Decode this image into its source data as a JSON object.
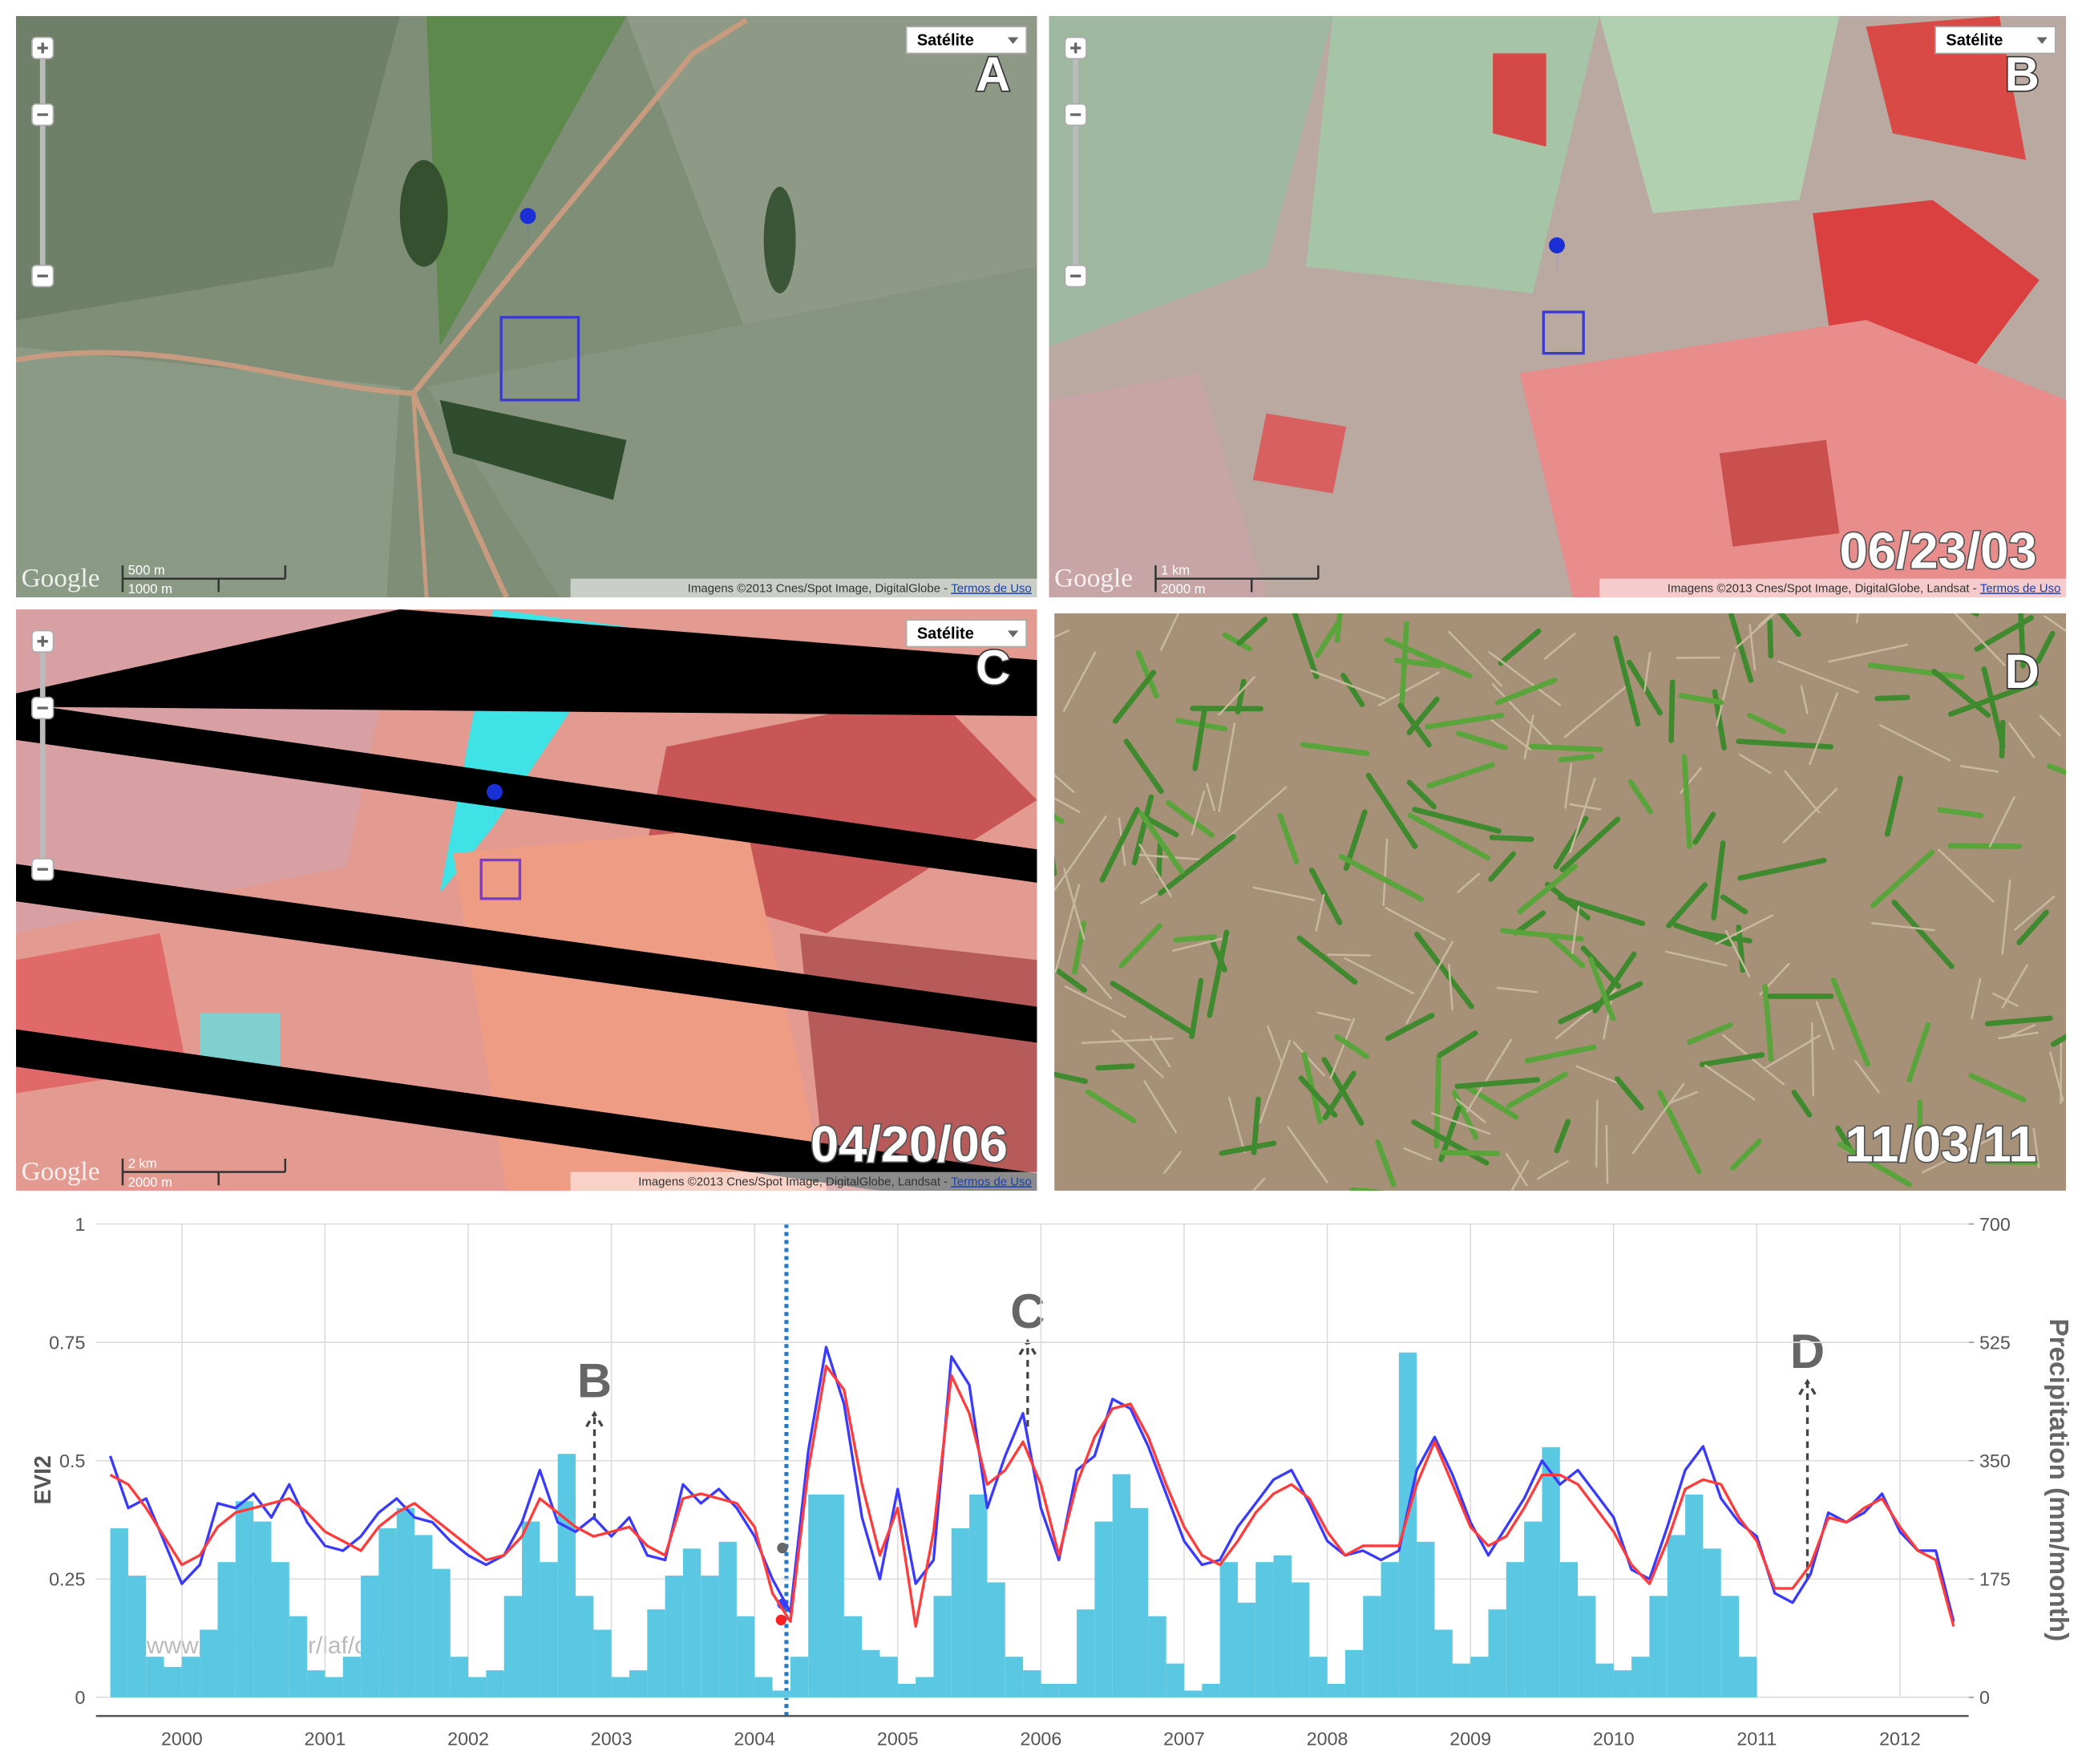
{
  "panels": [
    {
      "map_type": "Satélite",
      "letter": "A",
      "logo": "Google",
      "scale_top": "500 m",
      "scale_bottom": "1000 m",
      "attribution": "Imagens ©2013 Cnes/Spot Image, DigitalGlobe - ",
      "terms": "Termos de Uso"
    },
    {
      "map_type": "Satélite",
      "letter": "B",
      "date": "06/23/03",
      "logo": "Google",
      "scale_top": "1 km",
      "scale_bottom": "2000 m",
      "attribution": "Imagens ©2013 Cnes/Spot Image, DigitalGlobe, Landsat - ",
      "terms": "Termos de Uso"
    },
    {
      "map_type": "Satélite",
      "letter": "C",
      "date": "04/20/06",
      "logo": "Google",
      "scale_top": "2 km",
      "scale_bottom": "2000 m",
      "attribution": "Imagens ©2013 Cnes/Spot Image, DigitalGlobe, Landsat - ",
      "terms": "Termos de Uso"
    },
    {
      "letter": "D",
      "date": "11/03/11"
    }
  ],
  "chart_data": {
    "type": "line",
    "ylabel": "EVI2",
    "y2label": "Precipitation (mm/month)",
    "annotations": [
      {
        "text": "B"
      },
      {
        "text": "C"
      },
      {
        "text": "D"
      }
    ],
    "watermark": "www.dsr.inpe.br/laf/class",
    "grid": true,
    "xlim": [
      1999.9,
      2012.98
    ],
    "xticks": [
      {
        "value": 2000.5,
        "label": "2000"
      },
      {
        "value": 2001.5,
        "label": "2001"
      },
      {
        "value": 2002.5,
        "label": "2002"
      },
      {
        "value": 2003.5,
        "label": "2003"
      },
      {
        "value": 2004.5,
        "label": "2004"
      },
      {
        "value": 2005.5,
        "label": "2005"
      },
      {
        "value": 2006.5,
        "label": "2006"
      },
      {
        "value": 2007.5,
        "label": "2007"
      },
      {
        "value": 2008.5,
        "label": "2008"
      },
      {
        "value": 2009.5,
        "label": "2009"
      },
      {
        "value": 2010.5,
        "label": "2010"
      },
      {
        "value": 2011.5,
        "label": "2011"
      },
      {
        "value": 2012.5,
        "label": "2012"
      }
    ],
    "ylim": [
      0,
      1
    ],
    "yticks": [
      0,
      0.25,
      0.5,
      0.75,
      1
    ],
    "y2lim": [
      0,
      700
    ],
    "y2ticks": [
      0,
      175,
      350,
      525,
      700
    ],
    "x": [
      2000,
      2000.125,
      2000.25,
      2000.375,
      2000.5,
      2000.625,
      2000.75,
      2000.875,
      2001,
      2001.125,
      2001.25,
      2001.375,
      2001.5,
      2001.625,
      2001.75,
      2001.875,
      2002,
      2002.125,
      2002.25,
      2002.375,
      2002.5,
      2002.625,
      2002.75,
      2002.875,
      2003,
      2003.125,
      2003.25,
      2003.375,
      2003.5,
      2003.625,
      2003.75,
      2003.875,
      2004,
      2004.125,
      2004.25,
      2004.375,
      2004.5,
      2004.625,
      2004.75,
      2004.875,
      2005,
      2005.125,
      2005.25,
      2005.375,
      2005.5,
      2005.625,
      2005.75,
      2005.875,
      2006,
      2006.125,
      2006.25,
      2006.375,
      2006.5,
      2006.625,
      2006.75,
      2006.875,
      2007,
      2007.125,
      2007.25,
      2007.375,
      2007.5,
      2007.625,
      2007.75,
      2007.875,
      2008,
      2008.125,
      2008.25,
      2008.375,
      2008.5,
      2008.625,
      2008.75,
      2008.875,
      2009,
      2009.125,
      2009.25,
      2009.375,
      2009.5,
      2009.625,
      2009.75,
      2009.875,
      2010,
      2010.125,
      2010.25,
      2010.375,
      2010.5,
      2010.625,
      2010.75,
      2010.875,
      2011,
      2011.125,
      2011.25,
      2011.375,
      2011.5,
      2011.625,
      2011.75,
      2011.875,
      2012,
      2012.125,
      2012.25,
      2012.375,
      2012.5,
      2012.625,
      2012.75,
      2012.875
    ],
    "series": [
      {
        "type": "bar",
        "axis": "y2",
        "color": "#5bc8e3",
        "values": [
          250,
          180,
          60,
          45,
          60,
          100,
          200,
          290,
          260,
          200,
          120,
          40,
          30,
          60,
          180,
          250,
          280,
          240,
          190,
          60,
          30,
          40,
          150,
          260,
          200,
          360,
          150,
          100,
          30,
          40,
          130,
          180,
          220,
          180,
          230,
          120,
          30,
          10,
          60,
          300,
          300,
          120,
          70,
          60,
          20,
          30,
          150,
          250,
          300,
          170,
          60,
          40,
          20,
          20,
          130,
          260,
          330,
          280,
          120,
          50,
          10,
          20,
          200,
          140,
          200,
          210,
          170,
          60,
          20,
          70,
          150,
          200,
          510,
          230,
          100,
          50,
          60,
          130,
          200,
          260,
          370,
          200,
          150,
          50,
          40,
          60,
          150,
          240,
          300,
          220,
          150,
          60,
          null,
          null,
          null,
          null,
          null,
          null,
          null,
          null,
          null,
          null,
          null,
          null
        ]
      },
      {
        "type": "line",
        "color": "#3a3aff",
        "values": [
          0.51,
          0.4,
          0.42,
          0.33,
          0.24,
          0.28,
          0.41,
          0.4,
          0.43,
          0.38,
          0.45,
          0.37,
          0.32,
          0.31,
          0.34,
          0.39,
          0.42,
          0.38,
          0.37,
          0.33,
          0.3,
          0.28,
          0.3,
          0.37,
          0.48,
          0.37,
          0.35,
          0.38,
          0.34,
          0.38,
          0.3,
          0.29,
          0.45,
          0.41,
          0.44,
          0.4,
          0.34,
          0.25,
          0.18,
          0.52,
          0.74,
          0.62,
          0.38,
          0.25,
          0.44,
          0.24,
          0.29,
          0.72,
          0.66,
          0.4,
          0.51,
          0.6,
          0.4,
          0.29,
          0.48,
          0.51,
          0.63,
          0.61,
          0.53,
          0.43,
          0.33,
          0.28,
          0.29,
          0.36,
          0.41,
          0.46,
          0.48,
          0.41,
          0.33,
          0.3,
          0.31,
          0.29,
          0.31,
          0.48,
          0.55,
          0.47,
          0.37,
          0.3,
          0.36,
          0.42,
          0.5,
          0.45,
          0.48,
          0.43,
          0.38,
          0.27,
          0.25,
          0.36,
          0.48,
          0.53,
          0.42,
          0.37,
          0.34,
          0.22,
          0.2,
          0.26,
          0.39,
          0.37,
          0.39,
          0.43,
          0.35,
          0.31,
          0.31,
          0.16
        ]
      },
      {
        "type": "line",
        "color": "#ff3b3b",
        "values": [
          0.47,
          0.45,
          0.4,
          0.34,
          0.28,
          0.3,
          0.36,
          0.39,
          0.4,
          0.41,
          0.42,
          0.39,
          0.35,
          0.33,
          0.31,
          0.36,
          0.39,
          0.41,
          0.38,
          0.35,
          0.32,
          0.29,
          0.3,
          0.34,
          0.42,
          0.39,
          0.36,
          0.34,
          0.35,
          0.36,
          0.32,
          0.3,
          0.42,
          0.43,
          0.42,
          0.41,
          0.36,
          0.22,
          0.16,
          0.48,
          0.7,
          0.65,
          0.45,
          0.3,
          0.4,
          0.15,
          0.35,
          0.68,
          0.6,
          0.45,
          0.48,
          0.54,
          0.45,
          0.3,
          0.45,
          0.55,
          0.61,
          0.62,
          0.55,
          0.45,
          0.36,
          0.3,
          0.28,
          0.33,
          0.39,
          0.43,
          0.45,
          0.42,
          0.35,
          0.3,
          0.32,
          0.32,
          0.32,
          0.45,
          0.54,
          0.45,
          0.36,
          0.32,
          0.34,
          0.4,
          0.47,
          0.47,
          0.45,
          0.4,
          0.35,
          0.28,
          0.24,
          0.33,
          0.44,
          0.46,
          0.45,
          0.38,
          0.33,
          0.23,
          0.23,
          0.28,
          0.38,
          0.37,
          0.4,
          0.42,
          0.36,
          0.31,
          0.29,
          0.15
        ]
      }
    ]
  }
}
